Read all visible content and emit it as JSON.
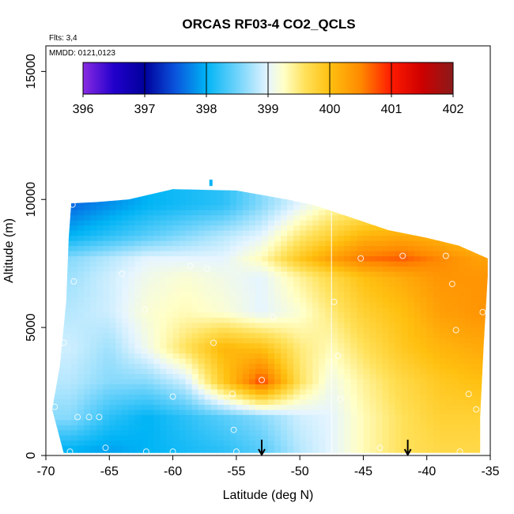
{
  "chart_data": {
    "type": "heatmap",
    "title": "ORCAS RF03-4 CO2_QCLS",
    "annotation_flts": "Flts: 3,4",
    "annotation_mmdd": "MMDD: 0121,0123",
    "xlabel": "Latitude (deg N)",
    "ylabel": "Altitude (m)",
    "xlim": [
      -70,
      -35
    ],
    "ylim": [
      0,
      16000
    ],
    "x_ticks": [
      "-70",
      "-65",
      "-60",
      "-55",
      "-50",
      "-45",
      "-40",
      "-35"
    ],
    "x_tick_values": [
      -70,
      -65,
      -60,
      -55,
      -50,
      -45,
      -40,
      -35
    ],
    "y_ticks": [
      "0",
      "5000",
      "10000",
      "15000"
    ],
    "y_tick_values": [
      0,
      5000,
      10000,
      15000
    ],
    "colorbar": {
      "min": 396,
      "max": 402,
      "ticks": [
        "396",
        "397",
        "398",
        "399",
        "400",
        "401",
        "402"
      ],
      "tick_values": [
        396,
        397,
        398,
        399,
        400,
        401,
        402
      ],
      "colors": [
        {
          "value": 396.0,
          "color": "#8a2be2"
        },
        {
          "value": 396.5,
          "color": "#2200cc"
        },
        {
          "value": 397.0,
          "color": "#00009a"
        },
        {
          "value": 397.5,
          "color": "#0a55dd"
        },
        {
          "value": 398.0,
          "color": "#00b4f5"
        },
        {
          "value": 398.5,
          "color": "#6fd3fb"
        },
        {
          "value": 399.0,
          "color": "#e6f5ff"
        },
        {
          "value": 399.25,
          "color": "#ffffc8"
        },
        {
          "value": 399.6,
          "color": "#ffe15a"
        },
        {
          "value": 400.0,
          "color": "#ffc010"
        },
        {
          "value": 400.5,
          "color": "#ff8a00"
        },
        {
          "value": 401.0,
          "color": "#ff1a00"
        },
        {
          "value": 401.5,
          "color": "#cc0000"
        },
        {
          "value": 402.0,
          "color": "#8b1a1a"
        }
      ]
    },
    "lat_grid": [
      -68,
      -65,
      -62,
      -59,
      -56,
      -53,
      -50,
      -47.5,
      -45,
      -42,
      -39,
      -36
    ],
    "alt_grid": [
      250,
      1500,
      2900,
      4200,
      5600,
      7000,
      7700,
      8600,
      9800
    ],
    "values": [
      [
        398.0,
        397.9,
        398.0,
        398.1,
        398.2,
        398.4,
        398.8,
        399.0,
        399.3,
        399.6,
        399.7,
        399.7
      ],
      [
        398.6,
        398.2,
        398.0,
        398.2,
        398.4,
        398.6,
        398.9,
        399.0,
        399.3,
        399.6,
        399.8,
        399.8
      ],
      [
        398.8,
        398.6,
        398.6,
        398.9,
        399.9,
        400.8,
        399.6,
        399.1,
        399.4,
        399.7,
        399.9,
        400.0
      ],
      [
        398.9,
        398.7,
        399.1,
        399.6,
        400.1,
        400.0,
        399.5,
        399.3,
        399.6,
        399.9,
        400.1,
        400.2
      ],
      [
        398.8,
        398.9,
        399.2,
        399.3,
        399.2,
        399.0,
        399.2,
        399.5,
        399.8,
        400.0,
        400.3,
        400.4
      ],
      [
        398.7,
        398.9,
        399.1,
        399.2,
        399.1,
        399.0,
        399.4,
        399.7,
        400.0,
        400.2,
        400.4,
        400.4
      ],
      [
        398.6,
        398.8,
        399.0,
        399.0,
        399.0,
        399.3,
        399.9,
        400.3,
        400.6,
        400.7,
        400.5,
        400.3
      ],
      [
        398.0,
        398.2,
        398.4,
        398.6,
        398.8,
        399.0,
        399.5,
        399.8,
        400.1,
        400.2,
        400.1,
        399.9
      ],
      [
        397.6,
        397.8,
        398.0,
        398.1,
        398.2,
        398.6,
        399.0,
        399.3,
        399.4,
        399.5,
        399.5,
        399.4
      ]
    ],
    "observation_points": [
      {
        "lat": -67.9,
        "alt": 9800
      },
      {
        "lat": -67.8,
        "alt": 6800
      },
      {
        "lat": -68.6,
        "alt": 4400
      },
      {
        "lat": -69.3,
        "alt": 1900
      },
      {
        "lat": -67.5,
        "alt": 1500
      },
      {
        "lat": -66.6,
        "alt": 1500
      },
      {
        "lat": -65.8,
        "alt": 1500
      },
      {
        "lat": -68.1,
        "alt": 150
      },
      {
        "lat": -65.3,
        "alt": 300
      },
      {
        "lat": -64.0,
        "alt": 7100
      },
      {
        "lat": -62.2,
        "alt": 5700
      },
      {
        "lat": -60.0,
        "alt": 2300
      },
      {
        "lat": -62.1,
        "alt": 150
      },
      {
        "lat": -60.0,
        "alt": 150
      },
      {
        "lat": -58.6,
        "alt": 7400
      },
      {
        "lat": -57.3,
        "alt": 7300
      },
      {
        "lat": -56.8,
        "alt": 4400
      },
      {
        "lat": -55.3,
        "alt": 2400
      },
      {
        "lat": -55.2,
        "alt": 1000
      },
      {
        "lat": -55.0,
        "alt": 150
      },
      {
        "lat": -53.0,
        "alt": 2950
      },
      {
        "lat": -52.1,
        "alt": 5400
      },
      {
        "lat": -47.3,
        "alt": 6000
      },
      {
        "lat": -47.0,
        "alt": 3900
      },
      {
        "lat": -46.8,
        "alt": 2200
      },
      {
        "lat": -45.2,
        "alt": 7700
      },
      {
        "lat": -41.9,
        "alt": 7800
      },
      {
        "lat": -43.7,
        "alt": 300
      },
      {
        "lat": -38.5,
        "alt": 7800
      },
      {
        "lat": -38.0,
        "alt": 6700
      },
      {
        "lat": -37.7,
        "alt": 4900
      },
      {
        "lat": -35.6,
        "alt": 5600
      },
      {
        "lat": -36.7,
        "alt": 2400
      },
      {
        "lat": -36.1,
        "alt": 1800
      },
      {
        "lat": -37.4,
        "alt": 150
      }
    ],
    "flight_path_lat": -47.5,
    "markers_lat": [
      -53,
      -41.5
    ],
    "envelope_top": [
      {
        "lat": -68.0,
        "alt": 9850
      },
      {
        "lat": -66.0,
        "alt": 9900
      },
      {
        "lat": -63.5,
        "alt": 10000
      },
      {
        "lat": -60.0,
        "alt": 10400
      },
      {
        "lat": -55.0,
        "alt": 10350
      },
      {
        "lat": -51.0,
        "alt": 10000
      },
      {
        "lat": -49.0,
        "alt": 9800
      },
      {
        "lat": -46.0,
        "alt": 9300
      },
      {
        "lat": -43.0,
        "alt": 8800
      },
      {
        "lat": -40.0,
        "alt": 8500
      },
      {
        "lat": -37.5,
        "alt": 8200
      },
      {
        "lat": -35.2,
        "alt": 7700
      }
    ],
    "envelope_bottom": [
      {
        "lat": -68.6,
        "alt": 100
      },
      {
        "lat": -35.8,
        "alt": 100
      }
    ],
    "envelope_left": [
      {
        "lat": -69.5,
        "alt": 1800
      },
      {
        "lat": -68.9,
        "alt": 3500
      },
      {
        "lat": -68.4,
        "alt": 6000
      },
      {
        "lat": -68.2,
        "alt": 8500
      }
    ],
    "envelope_right": [
      {
        "lat": -35.2,
        "alt": 7000
      },
      {
        "lat": -35.5,
        "alt": 4500
      },
      {
        "lat": -35.8,
        "alt": 1500
      }
    ],
    "top_spot": {
      "lat": -57.0,
      "alt": 10650
    }
  }
}
